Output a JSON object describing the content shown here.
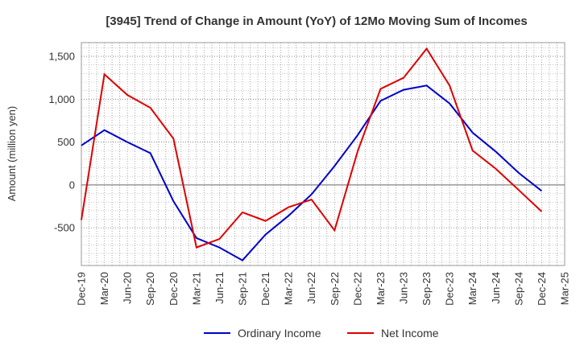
{
  "chart_data": {
    "type": "line",
    "title": "[3945]  Trend of Change in Amount (YoY) of 12Mo Moving Sum of Incomes",
    "xlabel": "",
    "ylabel": "Amount (million yen)",
    "ylim": [
      -940,
      1660
    ],
    "yticks": [
      1500,
      1000,
      500,
      0,
      -500
    ],
    "ytick_labels": [
      "1,500",
      "1,000",
      "500",
      "0",
      "-500"
    ],
    "categories": [
      "Dec-19",
      "Mar-20",
      "Jun-20",
      "Sep-20",
      "Dec-20",
      "Mar-21",
      "Jun-21",
      "Sep-21",
      "Dec-21",
      "Mar-22",
      "Jun-22",
      "Sep-22",
      "Dec-22",
      "Mar-23",
      "Jun-23",
      "Sep-23",
      "Dec-23",
      "Mar-24",
      "Jun-24",
      "Sep-24",
      "Dec-24",
      "Mar-25"
    ],
    "series": [
      {
        "name": "Ordinary Income",
        "color": "#0000cc",
        "values": [
          460,
          640,
          500,
          370,
          -190,
          -620,
          -730,
          -880,
          -580,
          -360,
          -110,
          220,
          580,
          980,
          1110,
          1160,
          950,
          610,
          390,
          140,
          -70,
          null
        ]
      },
      {
        "name": "Net Income",
        "color": "#dd0000",
        "values": [
          -410,
          1290,
          1050,
          900,
          540,
          -730,
          -630,
          -320,
          -420,
          -260,
          -170,
          -530,
          390,
          1120,
          1250,
          1590,
          1160,
          400,
          190,
          -60,
          -310,
          null
        ]
      }
    ],
    "legend_position": "bottom",
    "grid": true
  }
}
